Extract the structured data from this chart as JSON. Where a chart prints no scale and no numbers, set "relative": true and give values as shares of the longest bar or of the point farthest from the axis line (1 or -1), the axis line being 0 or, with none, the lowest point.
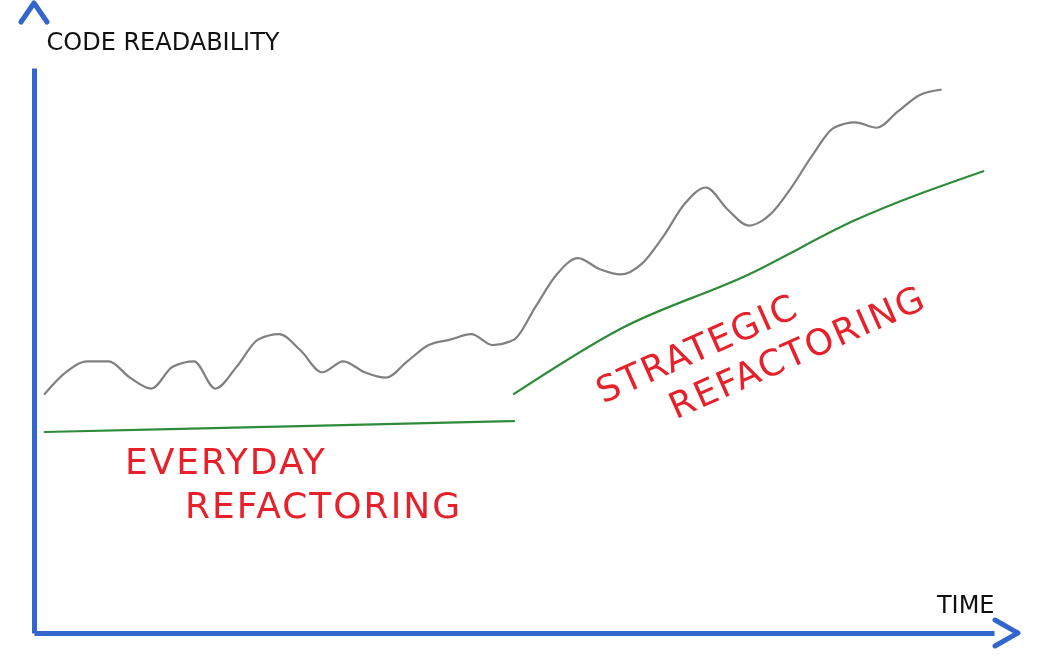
{
  "chart_data": {
    "type": "line",
    "relative": true,
    "xlabel": "TIME",
    "ylabel": "CODE READABILITY",
    "categories": [
      null,
      null,
      null,
      null,
      null,
      null,
      null,
      null,
      null,
      null,
      null,
      null,
      null,
      null,
      null,
      null,
      null,
      null,
      null,
      null,
      null,
      null,
      null,
      null,
      null,
      null,
      null,
      null,
      null,
      null,
      null,
      null,
      null,
      null,
      null,
      null,
      null,
      null,
      null,
      null,
      null,
      null,
      null,
      null,
      null
    ],
    "series": [
      {
        "color": "#808080",
        "values": [
          0.44,
          0.48,
          0.5,
          0.5,
          0.47,
          0.45,
          0.49,
          0.5,
          0.45,
          0.49,
          0.54,
          0.55,
          0.52,
          0.48,
          0.5,
          0.48,
          0.47,
          0.5,
          0.53,
          0.54,
          0.55,
          0.53,
          0.54,
          0.6,
          0.66,
          0.69,
          0.67,
          0.66,
          0.68,
          0.73,
          0.79,
          0.82,
          0.78,
          0.75,
          0.77,
          0.82,
          0.88,
          0.93,
          0.94,
          0.93,
          0.96,
          0.99,
          1.0,
          null,
          null
        ]
      },
      {
        "color": "#2e8b3a",
        "values": [
          0.37,
          null,
          null,
          null,
          null,
          null,
          null,
          null,
          null,
          null,
          null,
          0.38,
          null,
          null,
          null,
          null,
          null,
          null,
          null,
          null,
          null,
          null,
          0.39,
          null,
          null,
          null,
          null,
          null,
          null,
          null,
          null,
          null,
          null,
          null,
          null,
          null,
          null,
          null,
          null,
          null,
          null,
          null,
          null,
          null,
          null
        ]
      },
      {
        "color": "#2e8b3a",
        "values": [
          null,
          null,
          null,
          null,
          null,
          null,
          null,
          null,
          null,
          null,
          null,
          null,
          null,
          null,
          null,
          null,
          null,
          null,
          null,
          null,
          null,
          null,
          0.44,
          null,
          null,
          null,
          null,
          0.56,
          null,
          null,
          null,
          null,
          null,
          0.66,
          null,
          null,
          null,
          null,
          0.76,
          null,
          null,
          null,
          null,
          null,
          0.85
        ]
      }
    ],
    "annotations": [
      "EVERYDAY REFACTORING",
      "STRATEGIC REFACTORING"
    ]
  }
}
